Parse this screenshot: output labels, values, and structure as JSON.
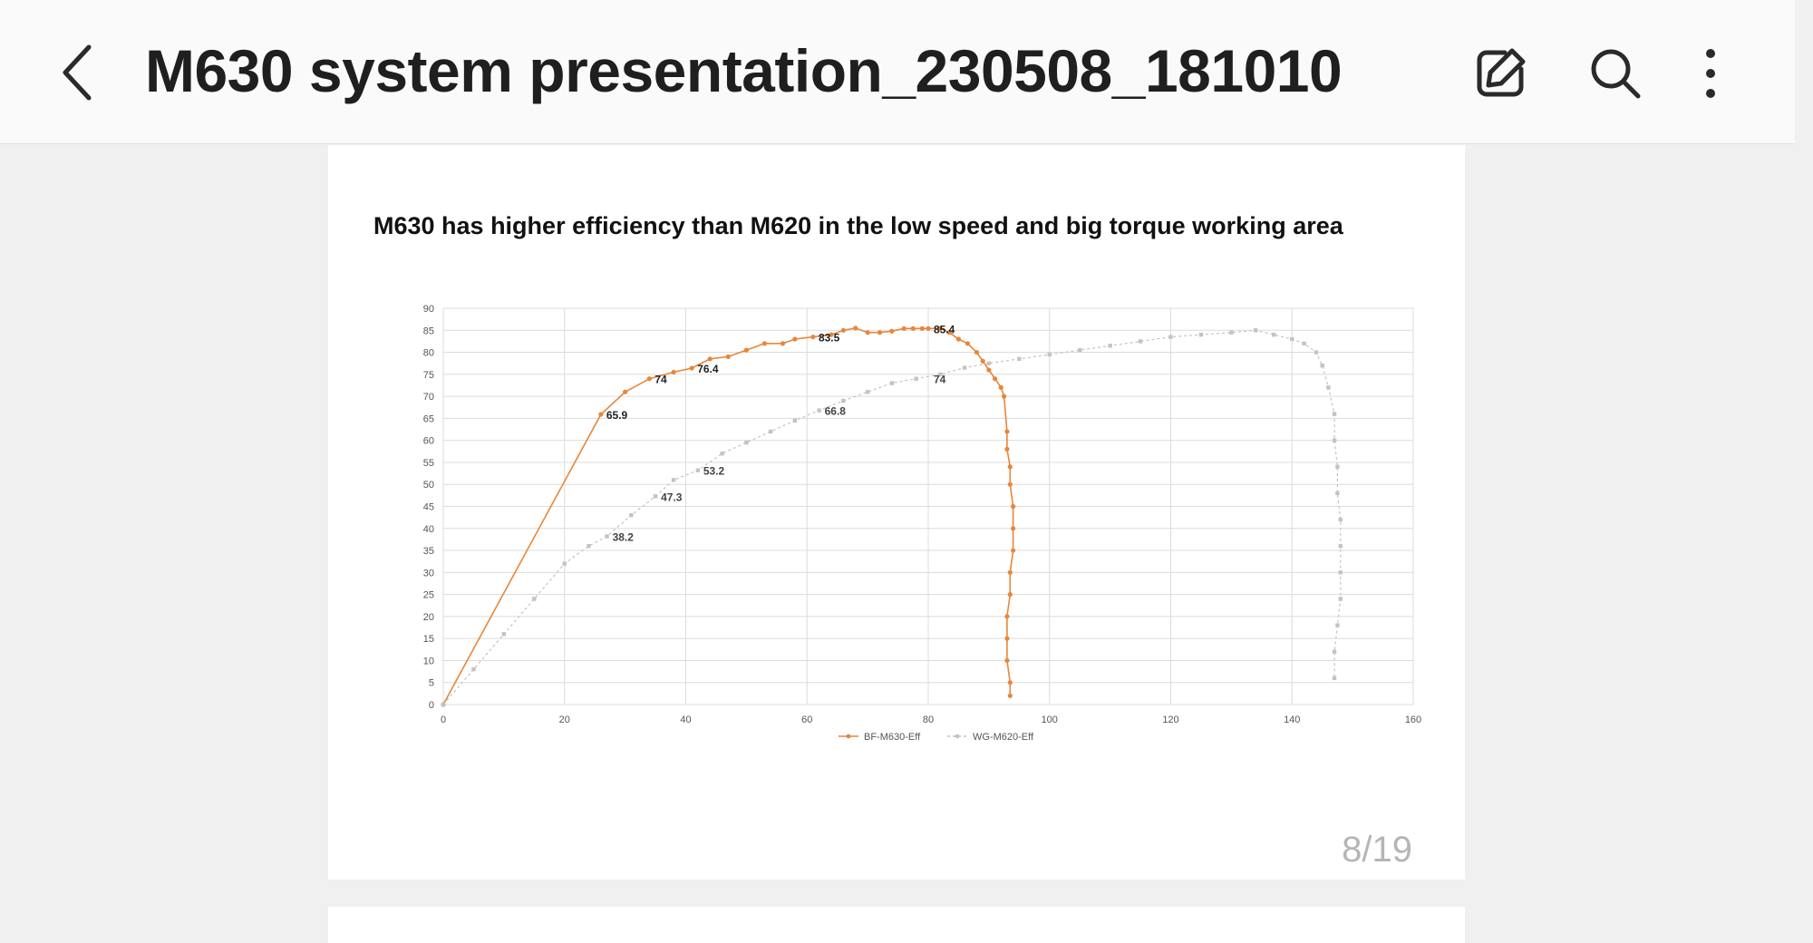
{
  "header": {
    "title": "M630 system presentation_230508_181010",
    "back_icon": "chevron-left-icon",
    "actions": [
      "edit-icon",
      "search-icon",
      "more-vertical-icon"
    ]
  },
  "slide": {
    "title": "M630 has higher efficiency than M620 in the low speed and big torque working area",
    "page_indicator": "8/19"
  },
  "chart_data": {
    "type": "scatter",
    "title": "M630 has higher efficiency than M620 in the low speed and big torque working area",
    "xlabel": "",
    "ylabel": "",
    "xlim": [
      0,
      160
    ],
    "ylim": [
      0,
      90
    ],
    "xticks": [
      0,
      20,
      40,
      60,
      80,
      100,
      120,
      140,
      160
    ],
    "yticks": [
      0,
      5,
      10,
      15,
      20,
      25,
      30,
      35,
      40,
      45,
      50,
      55,
      60,
      65,
      70,
      75,
      80,
      85,
      90
    ],
    "grid": true,
    "legend": "bottom-center",
    "series": [
      {
        "name": "BF-M630-Eff",
        "color": "#e8863a",
        "x": [
          0,
          26,
          30,
          34,
          38,
          41,
          44,
          47,
          50,
          53,
          56,
          58,
          61,
          64,
          66,
          68,
          70,
          72,
          74,
          76,
          77.5,
          79,
          80,
          82,
          83.5,
          85,
          86.5,
          88,
          89,
          90,
          91,
          92,
          92.5,
          93,
          93,
          93.5,
          93.5,
          94,
          94,
          94,
          93.5,
          93.5,
          93,
          93,
          93,
          93.5,
          93.5
        ],
        "y": [
          0,
          65.9,
          71,
          74,
          75.5,
          76.4,
          78.5,
          79,
          80.5,
          82,
          82,
          83,
          83.5,
          84,
          85,
          85.5,
          84.5,
          84.5,
          84.8,
          85.4,
          85.4,
          85.4,
          85.4,
          85.4,
          84.5,
          83,
          82,
          80,
          78,
          76,
          74,
          72,
          70,
          62,
          58,
          54,
          50,
          45,
          40,
          35,
          30,
          25,
          20,
          15,
          10,
          5,
          2
        ],
        "labels": [
          {
            "x": 26,
            "y": 65.9,
            "text": "65.9"
          },
          {
            "x": 34,
            "y": 74,
            "text": "74"
          },
          {
            "x": 41,
            "y": 76.4,
            "text": "76.4"
          },
          {
            "x": 61,
            "y": 83.5,
            "text": "83.5"
          },
          {
            "x": 80,
            "y": 85.4,
            "text": "85.4"
          }
        ]
      },
      {
        "name": "WG-M620-Eff",
        "color": "#c3c3c3",
        "x": [
          0,
          5,
          10,
          15,
          20,
          24,
          27,
          31,
          35,
          38,
          42,
          46,
          50,
          54,
          58,
          62,
          66,
          70,
          74,
          78,
          82,
          86,
          90,
          95,
          100,
          105,
          110,
          115,
          120,
          125,
          130,
          134,
          137,
          140,
          142,
          144,
          145,
          146,
          147,
          147,
          147.5,
          147.5,
          148,
          148,
          148,
          148,
          147.5,
          147,
          147
        ],
        "y": [
          0,
          8,
          16,
          24,
          32,
          36,
          38.2,
          43,
          47.3,
          51,
          53.2,
          57,
          59.5,
          62,
          64.5,
          66.8,
          69,
          71,
          73,
          74,
          75,
          76.5,
          77.5,
          78.5,
          79.5,
          80.5,
          81.5,
          82.5,
          83.5,
          84,
          84.5,
          85,
          84,
          83,
          82,
          80,
          77,
          72,
          66,
          60,
          54,
          48,
          42,
          36,
          30,
          24,
          18,
          12,
          6
        ],
        "labels": [
          {
            "x": 27,
            "y": 38.2,
            "text": "38.2"
          },
          {
            "x": 35,
            "y": 47.3,
            "text": "47.3"
          },
          {
            "x": 42,
            "y": 53.2,
            "text": "53.2"
          },
          {
            "x": 62,
            "y": 66.8,
            "text": "66.8"
          },
          {
            "x": 80,
            "y": 74,
            "text": "74"
          }
        ]
      }
    ]
  }
}
